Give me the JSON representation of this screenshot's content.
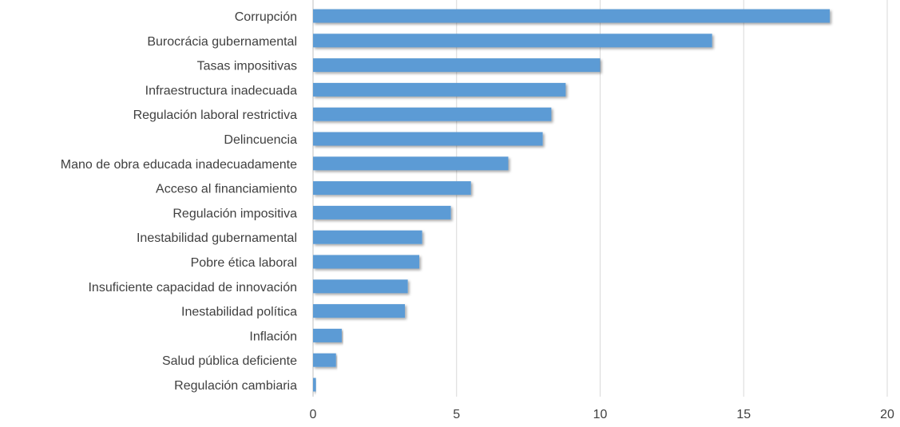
{
  "chart_data": {
    "type": "bar",
    "orientation": "horizontal",
    "title": "",
    "xlabel": "",
    "ylabel": "",
    "categories": [
      "Corrupción",
      "Burocrácia gubernamental",
      "Tasas impositivas",
      "Infraestructura inadecuada",
      "Regulación laboral restrictiva",
      "Delincuencia",
      "Mano de obra educada inadecuadamente",
      "Acceso al financiamiento",
      "Regulación impositiva",
      "Inestabilidad gubernamental",
      "Pobre ética laboral",
      "Insuficiente capacidad de innovación",
      "Inestabilidad política",
      "Inflación",
      "Salud pública deficiente",
      "Regulación cambiaria"
    ],
    "values": [
      18.0,
      13.9,
      10.0,
      8.8,
      8.3,
      8.0,
      6.8,
      5.5,
      4.8,
      3.8,
      3.7,
      3.3,
      3.2,
      1.0,
      0.8,
      0.1
    ],
    "xlim": [
      0,
      20
    ],
    "xticks": [
      "0",
      "5",
      "10",
      "15",
      "20"
    ],
    "grid": true,
    "bar_color": "#5b9bd5",
    "grid_color": "#d9d9d9"
  }
}
